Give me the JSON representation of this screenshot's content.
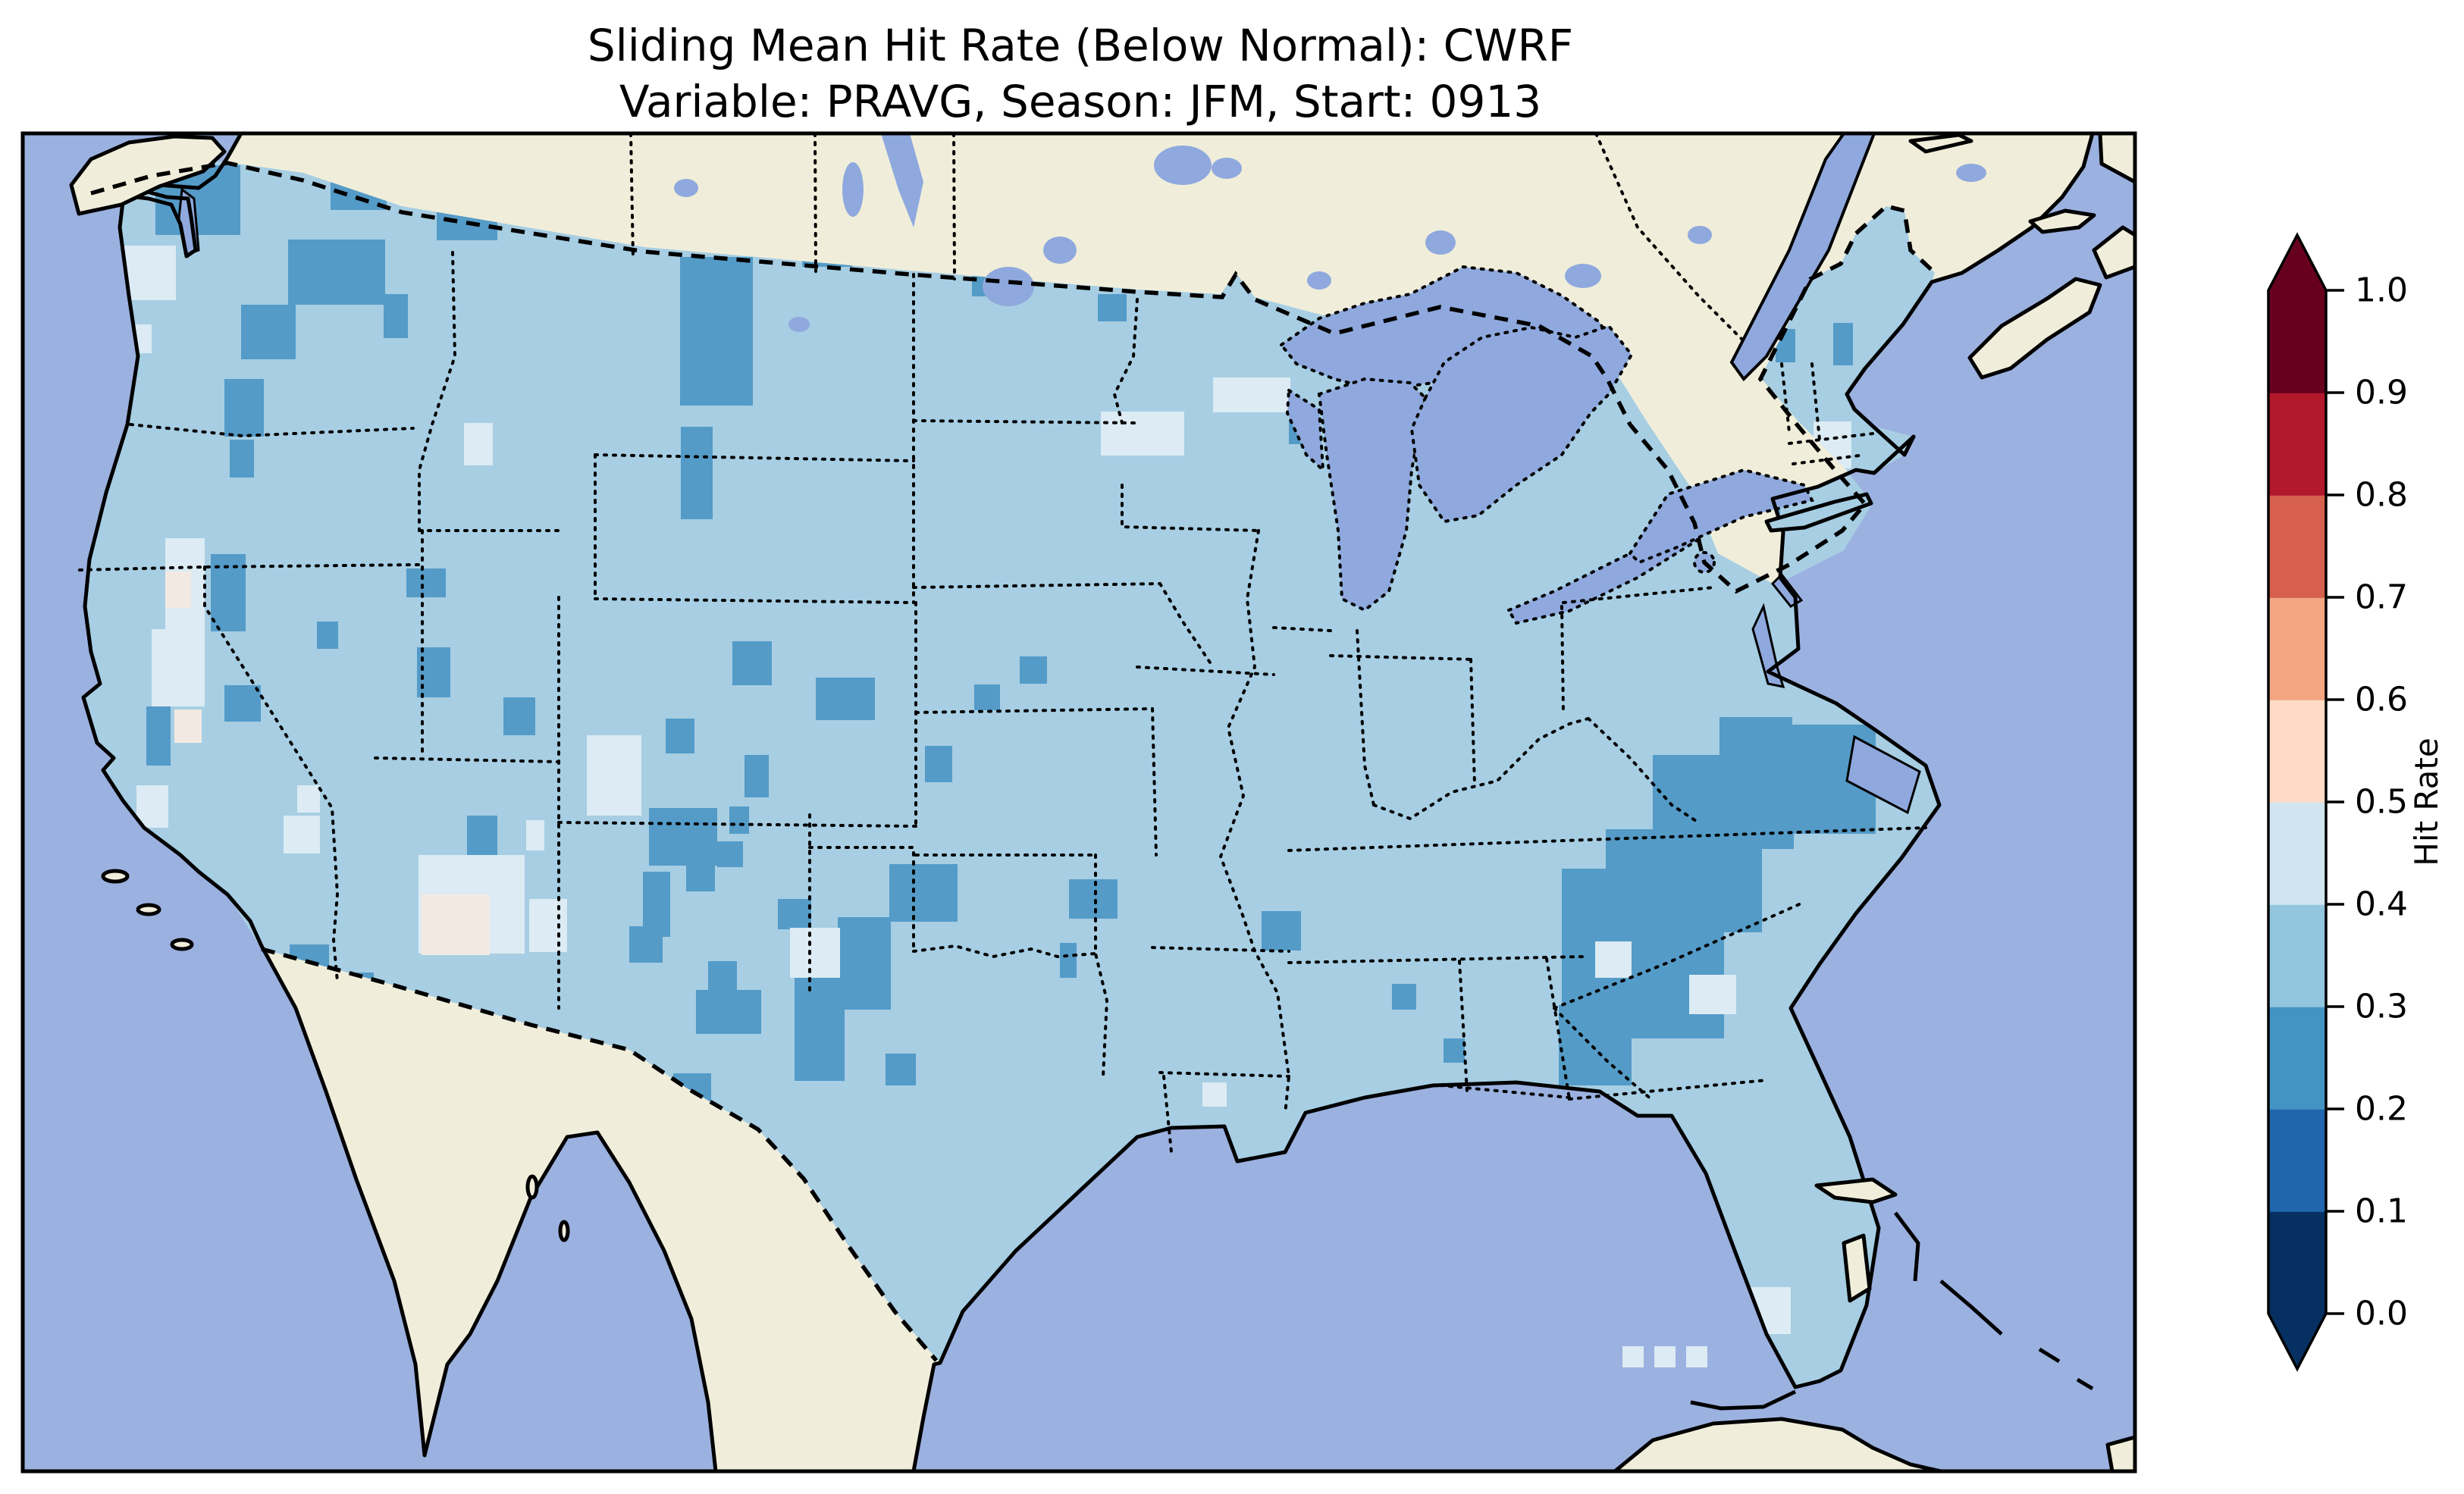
{
  "title": {
    "line1": "Sliding Mean Hit Rate (Below Normal): CWRF",
    "line2": "Variable: PRAVG, Season: JFM, Start: 0913"
  },
  "colorbar": {
    "label": "Hit Rate",
    "ticks": [
      "1.0",
      "0.9",
      "0.8",
      "0.7",
      "0.6",
      "0.5",
      "0.4",
      "0.3",
      "0.2",
      "0.1",
      "0.0"
    ],
    "bin_colors_bottom_to_top": [
      "#053061",
      "#2166ac",
      "#4393c3",
      "#92c5de",
      "#d1e5f0",
      "#fddbc7",
      "#f4a582",
      "#d6604d",
      "#b2182b",
      "#67001f"
    ],
    "bin_ranges_bottom_to_top": [
      "0.0-0.1",
      "0.1-0.2",
      "0.2-0.3",
      "0.3-0.4",
      "0.4-0.5",
      "0.5-0.6",
      "0.6-0.7",
      "0.7-0.8",
      "0.8-0.9",
      "0.9-1.0"
    ],
    "under_arrow_color": "#053061",
    "over_arrow_color": "#67001f"
  },
  "map": {
    "projection": "Lambert Conformal (CONUS)",
    "ocean_color": "#9bb1e0",
    "land_color": "#f0eeda",
    "lake_color": "#8fa9de",
    "data_base_bin": "0.3-0.4",
    "data_base_color": "#a7cee3",
    "cell_colors": {
      "m": "#549bc8",
      "p": "#dcebf4",
      "w": "#f2eae2"
    },
    "cell_bin_meaning": {
      "m": "0.2-0.3",
      "p": "0.4-0.5",
      "w": "0.5-0.6"
    },
    "cells": [
      [
        205,
        218,
        112,
        92,
        "m"
      ],
      [
        436,
        231,
        74,
        46,
        "m"
      ],
      [
        576,
        251,
        80,
        66,
        "m"
      ],
      [
        380,
        316,
        128,
        86,
        "m"
      ],
      [
        318,
        402,
        72,
        72,
        "m"
      ],
      [
        506,
        388,
        32,
        58,
        "m"
      ],
      [
        142,
        458,
        28,
        32,
        "m"
      ],
      [
        296,
        500,
        52,
        76,
        "m"
      ],
      [
        303,
        580,
        32,
        50,
        "m"
      ],
      [
        897,
        339,
        96,
        196,
        "m"
      ],
      [
        898,
        563,
        42,
        122,
        "m"
      ],
      [
        1058,
        328,
        66,
        24,
        "m"
      ],
      [
        1282,
        351,
        42,
        40,
        "m"
      ],
      [
        1448,
        388,
        38,
        36,
        "m"
      ],
      [
        1285,
        903,
        34,
        34,
        "m"
      ],
      [
        1345,
        866,
        36,
        36,
        "m"
      ],
      [
        1076,
        894,
        78,
        56,
        "m"
      ],
      [
        1220,
        984,
        36,
        48,
        "m"
      ],
      [
        966,
        846,
        52,
        58,
        "m"
      ],
      [
        878,
        948,
        38,
        46,
        "m"
      ],
      [
        982,
        996,
        32,
        56,
        "m"
      ],
      [
        962,
        1064,
        26,
        36,
        "m"
      ],
      [
        946,
        1110,
        34,
        34,
        "m"
      ],
      [
        856,
        1066,
        90,
        76,
        "m"
      ],
      [
        800,
        1016,
        36,
        38,
        "m"
      ],
      [
        905,
        1140,
        38,
        36,
        "m"
      ],
      [
        616,
        1076,
        40,
        56,
        "m"
      ],
      [
        660,
        1144,
        32,
        32,
        "m"
      ],
      [
        536,
        750,
        52,
        38,
        "m"
      ],
      [
        550,
        854,
        44,
        66,
        "m"
      ],
      [
        664,
        920,
        42,
        50,
        "m"
      ],
      [
        418,
        820,
        28,
        36,
        "m"
      ],
      [
        278,
        731,
        46,
        102,
        "m"
      ],
      [
        296,
        904,
        48,
        48,
        "m"
      ],
      [
        193,
        932,
        32,
        78,
        "m"
      ],
      [
        382,
        1246,
        52,
        54,
        "m"
      ],
      [
        445,
        1283,
        48,
        40,
        "m"
      ],
      [
        1105,
        1210,
        70,
        122,
        "m"
      ],
      [
        1173,
        1140,
        90,
        76,
        "m"
      ],
      [
        1048,
        1266,
        66,
        160,
        "m"
      ],
      [
        918,
        1306,
        86,
        58,
        "m"
      ],
      [
        888,
        1416,
        50,
        50,
        "m"
      ],
      [
        1168,
        1390,
        40,
        42,
        "m"
      ],
      [
        848,
        1150,
        36,
        86,
        "m"
      ],
      [
        830,
        1222,
        44,
        48,
        "m"
      ],
      [
        1026,
        1186,
        44,
        40,
        "m"
      ],
      [
        934,
        1268,
        38,
        44,
        "m"
      ],
      [
        1410,
        1160,
        64,
        52,
        "m"
      ],
      [
        1398,
        1244,
        22,
        46,
        "m"
      ],
      [
        1664,
        1202,
        52,
        52,
        "m"
      ],
      [
        2342,
        434,
        26,
        44,
        "m"
      ],
      [
        2284,
        648,
        64,
        40,
        "m"
      ],
      [
        2418,
        426,
        26,
        56,
        "m"
      ],
      [
        2268,
        946,
        96,
        94,
        "m"
      ],
      [
        2180,
        996,
        186,
        124,
        "m"
      ],
      [
        2118,
        1094,
        206,
        136,
        "m"
      ],
      [
        2060,
        1146,
        134,
        186,
        "m"
      ],
      [
        2148,
        1226,
        126,
        144,
        "m"
      ],
      [
        2056,
        1326,
        96,
        106,
        "m"
      ],
      [
        2350,
        956,
        124,
        144,
        "m"
      ],
      [
        1904,
        1370,
        28,
        32,
        "m"
      ],
      [
        1836,
        1298,
        32,
        34,
        "m"
      ],
      [
        1700,
        554,
        32,
        32,
        "m"
      ],
      [
        150,
        324,
        82,
        72,
        "p"
      ],
      [
        168,
        428,
        32,
        38,
        "p"
      ],
      [
        218,
        710,
        52,
        122,
        "p"
      ],
      [
        200,
        830,
        70,
        102,
        "p"
      ],
      [
        180,
        1036,
        42,
        56,
        "p"
      ],
      [
        374,
        1076,
        48,
        50,
        "p"
      ],
      [
        552,
        1128,
        140,
        130,
        "p"
      ],
      [
        694,
        1082,
        24,
        40,
        "p"
      ],
      [
        392,
        1036,
        30,
        36,
        "p"
      ],
      [
        774,
        970,
        72,
        106,
        "p"
      ],
      [
        698,
        1186,
        50,
        70,
        "p"
      ],
      [
        1042,
        1224,
        66,
        66,
        "p"
      ],
      [
        1452,
        543,
        110,
        58,
        "p"
      ],
      [
        1600,
        498,
        102,
        46,
        "p"
      ],
      [
        612,
        558,
        38,
        56,
        "p"
      ],
      [
        2392,
        556,
        50,
        62,
        "p"
      ],
      [
        2302,
        1698,
        60,
        62,
        "p"
      ],
      [
        2104,
        1242,
        48,
        48,
        "p"
      ],
      [
        2228,
        1286,
        62,
        52,
        "p"
      ],
      [
        1586,
        1428,
        32,
        32,
        "p"
      ],
      [
        104,
        312,
        42,
        74,
        "w"
      ],
      [
        218,
        754,
        34,
        48,
        "w"
      ],
      [
        230,
        936,
        36,
        44,
        "w"
      ],
      [
        556,
        1180,
        90,
        80,
        "w"
      ]
    ],
    "cells_offshore": [
      [
        2140,
        1776,
        28,
        28,
        "p"
      ],
      [
        2182,
        1776,
        28,
        28,
        "p"
      ],
      [
        2224,
        1776,
        28,
        28,
        "p"
      ]
    ]
  }
}
